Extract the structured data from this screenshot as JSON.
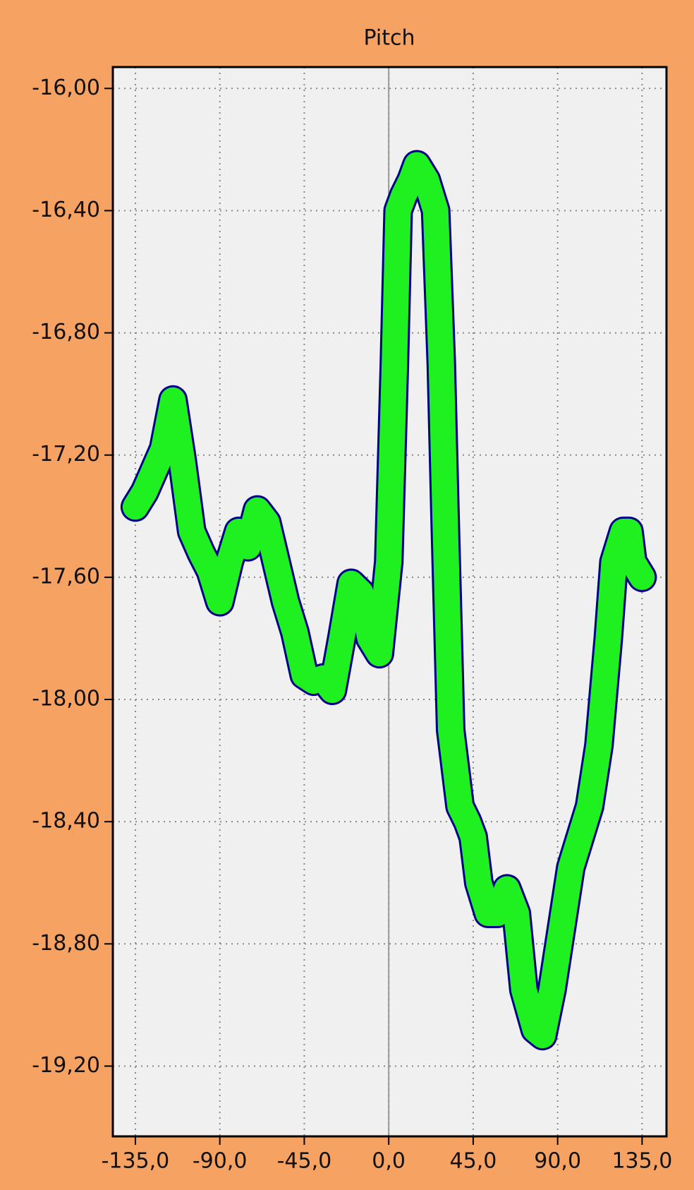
{
  "chart_data": {
    "type": "line",
    "title": "Pitch",
    "x": [
      -135,
      -130,
      -125,
      -120,
      -115,
      -110,
      -105,
      -100,
      -95,
      -90,
      -85,
      -80,
      -75,
      -70,
      -65,
      -60,
      -55,
      -50,
      -45,
      -40,
      -35,
      -30,
      -25,
      -20,
      -15,
      -10,
      -5,
      0,
      3,
      5,
      8,
      12,
      15,
      20,
      25,
      28,
      30,
      33,
      38,
      42,
      45,
      48,
      53,
      58,
      63,
      68,
      72,
      78,
      82,
      87,
      92,
      97,
      102,
      107,
      112,
      117,
      120,
      125,
      128,
      130,
      135
    ],
    "series": [
      {
        "name": "Pitch",
        "color": "#1ff01f",
        "edge_color": "#00008b",
        "values": [
          -17.37,
          -17.32,
          -17.25,
          -17.18,
          -17.02,
          -17.22,
          -17.45,
          -17.52,
          -17.58,
          -17.68,
          -17.55,
          -17.45,
          -17.5,
          -17.38,
          -17.42,
          -17.55,
          -17.68,
          -17.78,
          -17.92,
          -17.94,
          -17.93,
          -17.97,
          -17.8,
          -17.62,
          -17.65,
          -17.8,
          -17.85,
          -17.55,
          -16.9,
          -16.4,
          -16.35,
          -16.3,
          -16.25,
          -16.3,
          -16.4,
          -16.9,
          -17.4,
          -18.1,
          -18.35,
          -18.4,
          -18.45,
          -18.6,
          -18.7,
          -18.7,
          -18.62,
          -18.7,
          -18.95,
          -19.08,
          -19.1,
          -18.95,
          -18.75,
          -18.55,
          -18.45,
          -18.35,
          -18.15,
          -17.8,
          -17.55,
          -17.45,
          -17.45,
          -17.55,
          -17.6
        ]
      }
    ],
    "xlim": [
      -147,
      148
    ],
    "ylim": [
      -19.43,
      -15.93
    ],
    "xticks": [
      {
        "value": -135,
        "label": "-135,0"
      },
      {
        "value": -90,
        "label": "-90,0"
      },
      {
        "value": -45,
        "label": "-45,0"
      },
      {
        "value": 0,
        "label": "0,0"
      },
      {
        "value": 45,
        "label": "45,0"
      },
      {
        "value": 90,
        "label": "90,0"
      },
      {
        "value": 135,
        "label": "135,0"
      }
    ],
    "yticks": [
      {
        "value": -16,
        "label": "-16,00"
      },
      {
        "value": -16.4,
        "label": "-16,40"
      },
      {
        "value": -16.8,
        "label": "-16,80"
      },
      {
        "value": -17.2,
        "label": "-17,20"
      },
      {
        "value": -17.6,
        "label": "-17,60"
      },
      {
        "value": -18,
        "label": "-18,00"
      },
      {
        "value": -18.4,
        "label": "-18,40"
      },
      {
        "value": -18.8,
        "label": "-18,80"
      },
      {
        "value": -19.2,
        "label": "-19,20"
      }
    ],
    "grid": true,
    "zero_line": true
  }
}
